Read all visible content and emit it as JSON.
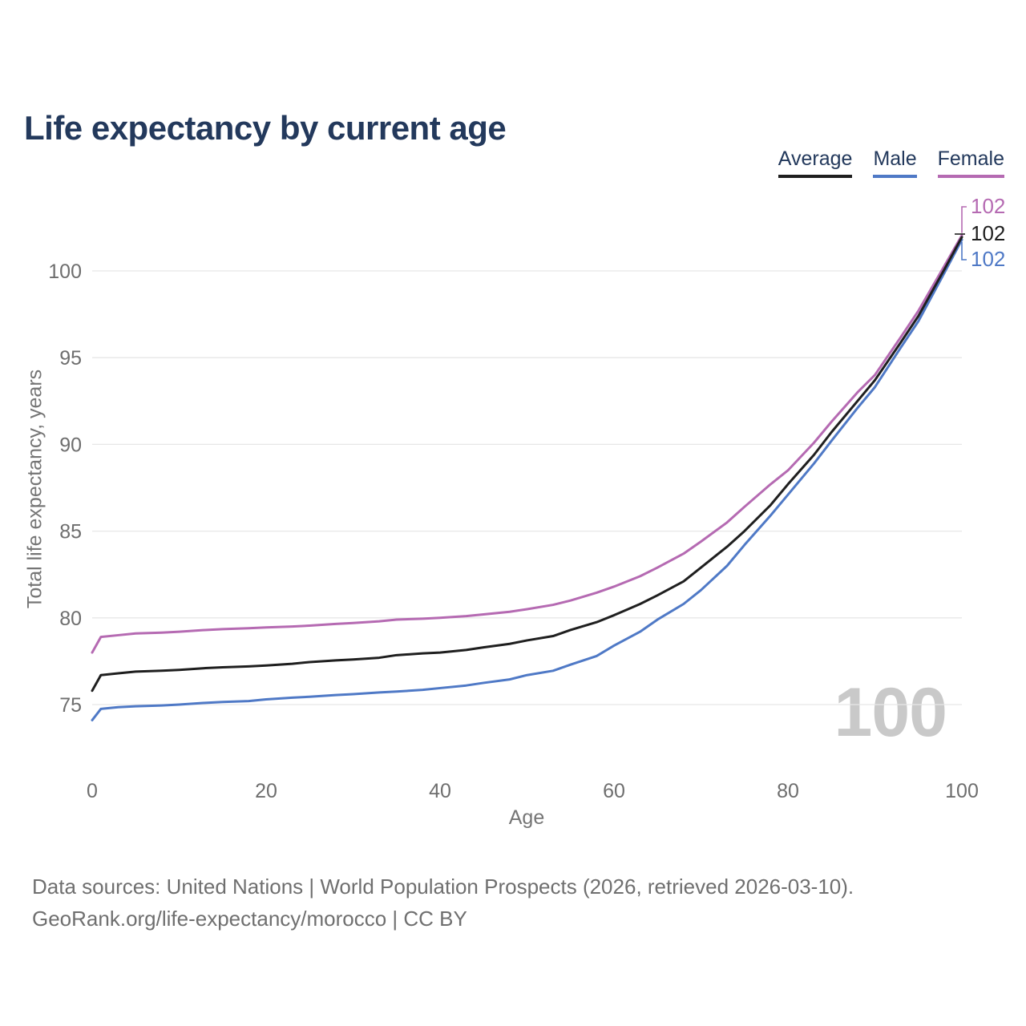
{
  "header": {
    "title": "Life expectancy by current age"
  },
  "watermark": "100",
  "footer": {
    "line1": "Data sources: United Nations | World Population Prospects (2026, retrieved 2026-03-10).",
    "line2": "GeoRank.org/life-expectancy/morocco | CC BY"
  },
  "colors": {
    "title_text": "#23395c",
    "axis_text": "#6e6e6e",
    "gridline": "#e7e7e7",
    "watermark": "#c9c9c9"
  },
  "chart_data": {
    "type": "line",
    "title": "Life expectancy by current age",
    "xlabel": "Age",
    "ylabel": "Total life expectancy, years",
    "xlim": [
      0,
      100
    ],
    "ylim": [
      73.5,
      103
    ],
    "x_ticks": [
      0,
      20,
      40,
      60,
      80,
      100
    ],
    "y_ticks": [
      75,
      80,
      85,
      90,
      95,
      100
    ],
    "grid": "horizontal",
    "legend_position": "top-right",
    "x": [
      0,
      1,
      3,
      5,
      8,
      10,
      13,
      15,
      18,
      20,
      23,
      25,
      28,
      30,
      33,
      35,
      38,
      40,
      43,
      45,
      48,
      50,
      53,
      55,
      58,
      60,
      63,
      65,
      68,
      70,
      73,
      75,
      78,
      80,
      83,
      85,
      88,
      90,
      93,
      95,
      98,
      100
    ],
    "series": [
      {
        "name": "Average",
        "color": "#1f1f1f",
        "end_label": "102",
        "values": [
          75.8,
          76.7,
          76.8,
          76.9,
          76.95,
          77.0,
          77.1,
          77.15,
          77.2,
          77.25,
          77.35,
          77.45,
          77.55,
          77.6,
          77.7,
          77.85,
          77.95,
          78.0,
          78.15,
          78.3,
          78.5,
          78.7,
          78.95,
          79.3,
          79.75,
          80.15,
          80.8,
          81.3,
          82.1,
          82.9,
          84.1,
          85.0,
          86.5,
          87.7,
          89.4,
          90.7,
          92.5,
          93.7,
          95.9,
          97.4,
          100.1,
          101.95
        ]
      },
      {
        "name": "Male",
        "color": "#4f79c6",
        "end_label": "102",
        "values": [
          74.1,
          74.75,
          74.85,
          74.9,
          74.95,
          75.0,
          75.1,
          75.15,
          75.2,
          75.3,
          75.4,
          75.45,
          75.55,
          75.6,
          75.7,
          75.75,
          75.85,
          75.95,
          76.1,
          76.25,
          76.45,
          76.7,
          76.95,
          77.3,
          77.8,
          78.4,
          79.2,
          79.9,
          80.8,
          81.6,
          83.0,
          84.2,
          85.9,
          87.1,
          88.9,
          90.2,
          92.1,
          93.3,
          95.6,
          97.1,
          99.9,
          101.8
        ]
      },
      {
        "name": "Female",
        "color": "#b56ab2",
        "end_label": "102",
        "values": [
          78.0,
          78.9,
          79.0,
          79.1,
          79.15,
          79.2,
          79.3,
          79.35,
          79.4,
          79.45,
          79.5,
          79.55,
          79.65,
          79.7,
          79.8,
          79.9,
          79.95,
          80.0,
          80.1,
          80.2,
          80.35,
          80.5,
          80.75,
          81.0,
          81.45,
          81.8,
          82.4,
          82.9,
          83.7,
          84.4,
          85.5,
          86.4,
          87.7,
          88.5,
          90.1,
          91.3,
          93.0,
          94.0,
          96.2,
          97.7,
          100.3,
          102.05
        ]
      }
    ]
  }
}
